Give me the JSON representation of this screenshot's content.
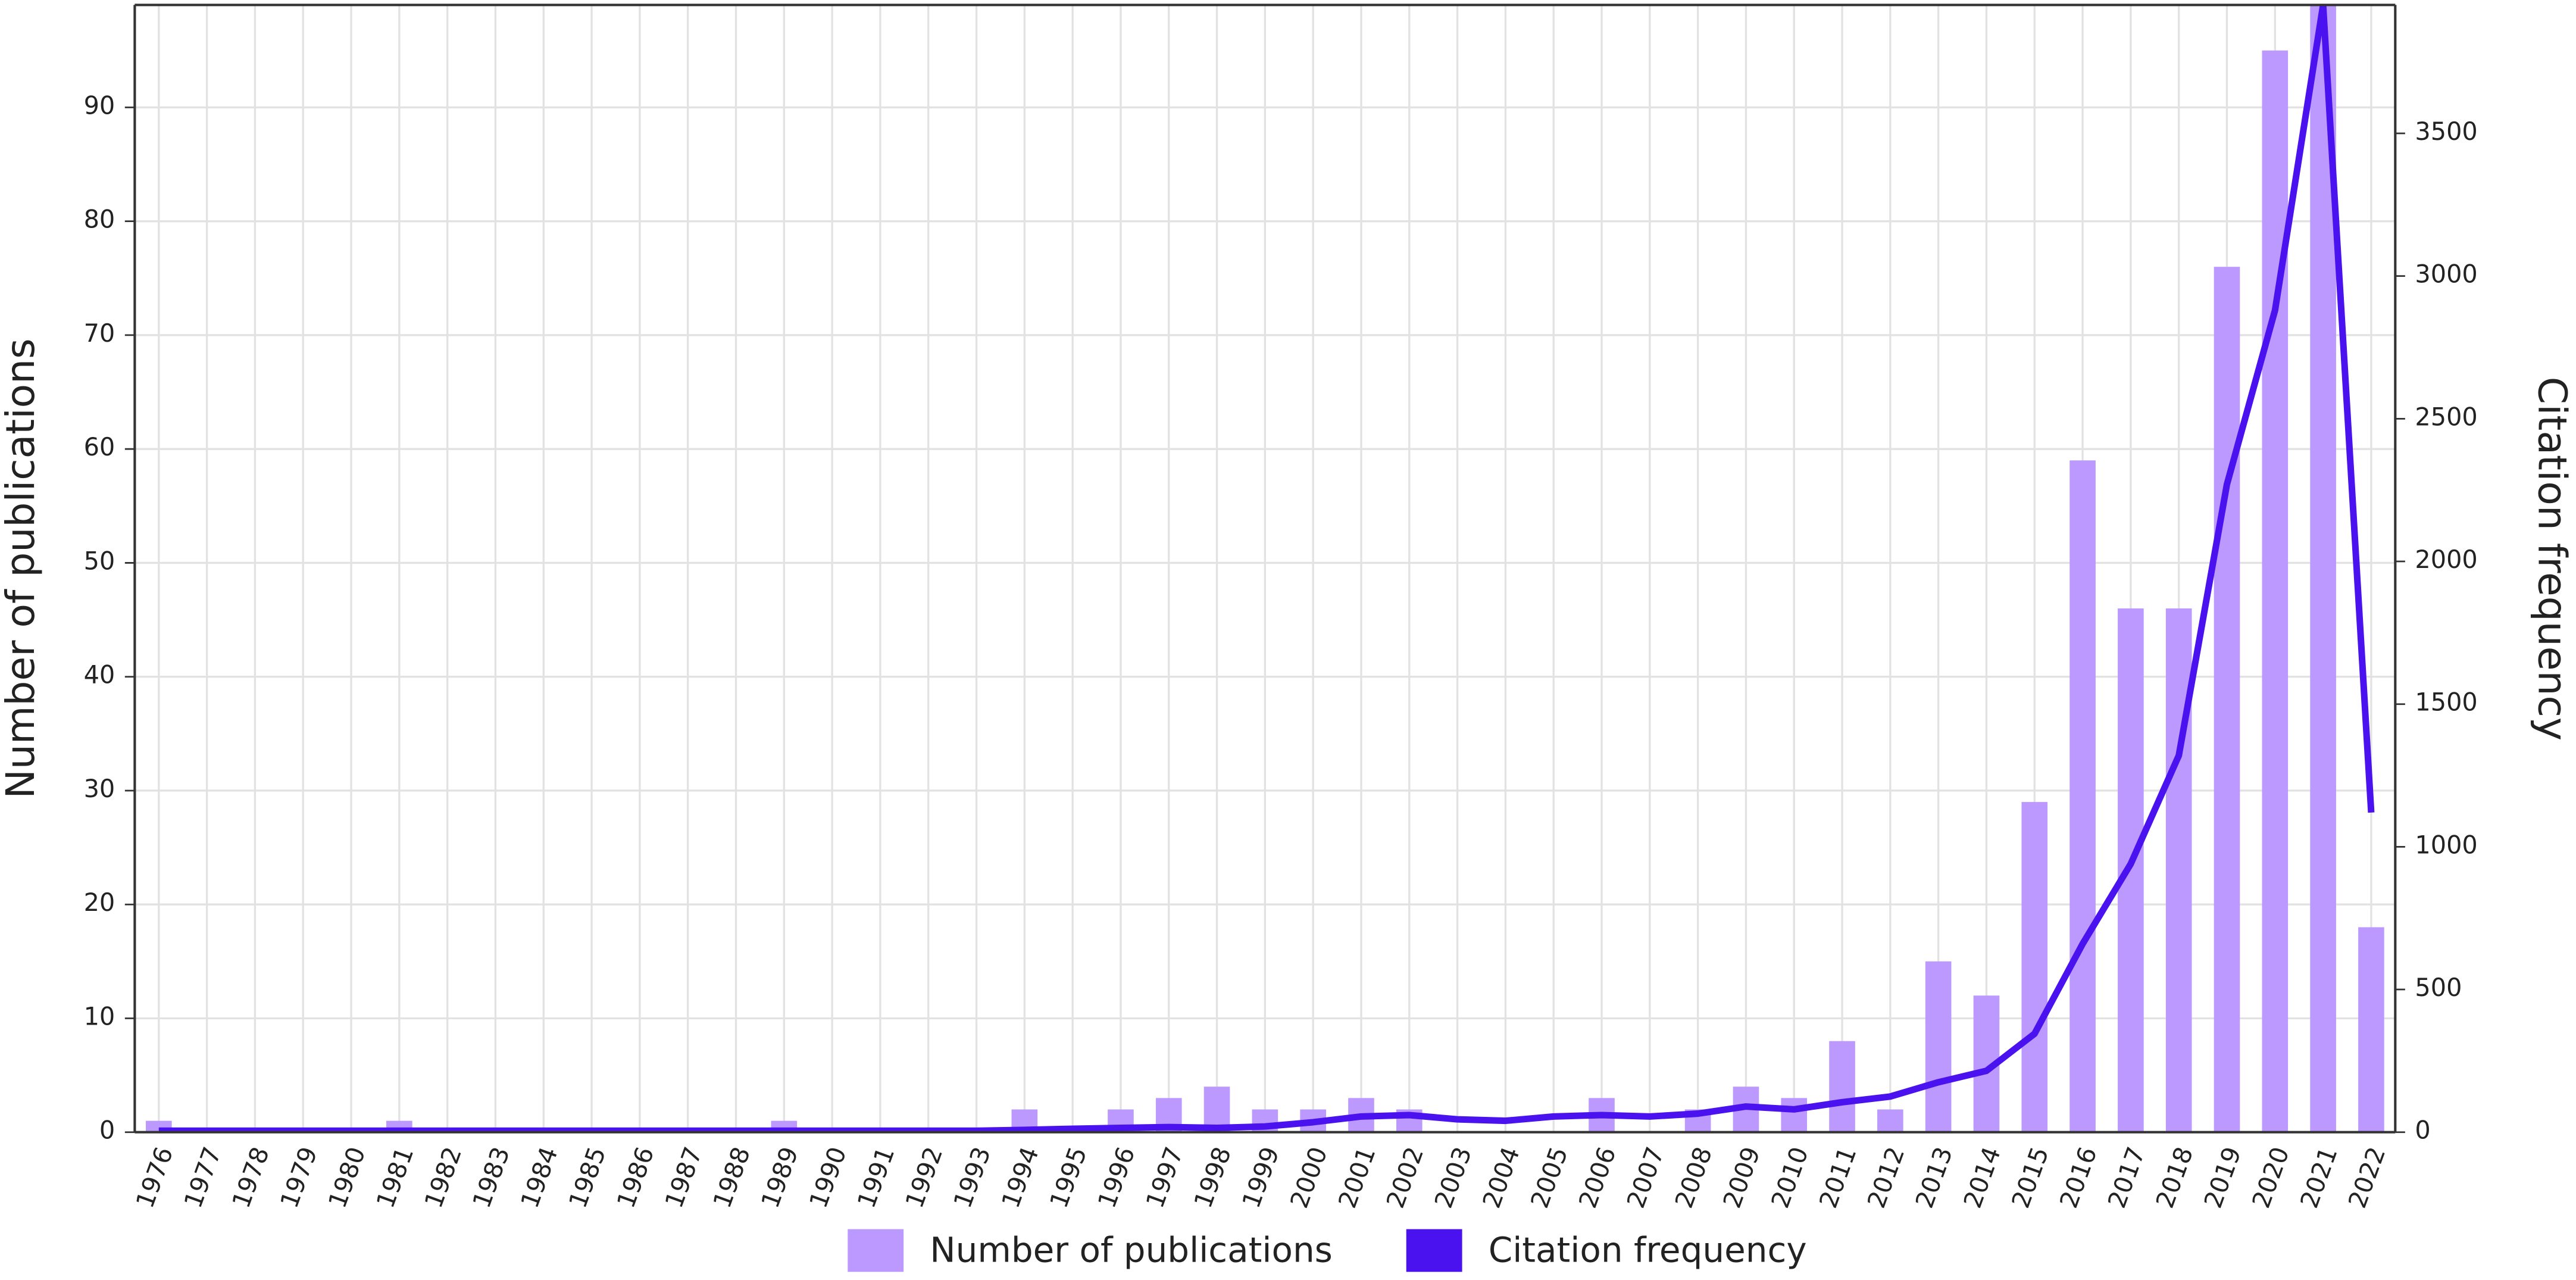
{
  "chart_data": {
    "type": "bar-line",
    "y_label": "Number of publications",
    "y2_label": "Citation frequency",
    "categories": [
      "1976",
      "1977",
      "1978",
      "1979",
      "1980",
      "1981",
      "1982",
      "1983",
      "1984",
      "1985",
      "1986",
      "1987",
      "1988",
      "1989",
      "1990",
      "1991",
      "1992",
      "1993",
      "1994",
      "1995",
      "1996",
      "1997",
      "1998",
      "1999",
      "2000",
      "2001",
      "2002",
      "2003",
      "2004",
      "2005",
      "2006",
      "2007",
      "2008",
      "2009",
      "2010",
      "2011",
      "2012",
      "2013",
      "2014",
      "2015",
      "2016",
      "2017",
      "2018",
      "2019",
      "2020",
      "2021",
      "2022"
    ],
    "series": [
      {
        "name": "Number of publications",
        "color": "#bb99ff",
        "kind": "bar",
        "values": [
          1,
          0,
          0,
          0,
          0,
          1,
          0,
          0,
          0,
          0,
          0,
          0,
          0,
          1,
          0,
          0,
          0,
          0,
          2,
          0,
          2,
          3,
          4,
          2,
          2,
          3,
          2,
          0,
          0,
          0,
          3,
          0,
          2,
          4,
          3,
          8,
          2,
          15,
          12,
          29,
          59,
          46,
          46,
          76,
          95,
          100,
          18
        ]
      },
      {
        "name": "Citation frequency",
        "color": "#4a12ee",
        "kind": "line",
        "axis": "y2",
        "values": [
          5,
          5,
          5,
          5,
          5,
          5,
          5,
          5,
          5,
          5,
          5,
          5,
          5,
          5,
          5,
          5,
          5,
          5,
          8,
          12,
          15,
          18,
          15,
          20,
          35,
          55,
          60,
          45,
          40,
          55,
          60,
          55,
          65,
          90,
          80,
          105,
          125,
          175,
          215,
          345,
          660,
          940,
          1320,
          2270,
          2880,
          3950,
          1120
        ]
      }
    ],
    "ylim": [
      0,
      99
    ],
    "yticks": [
      0,
      10,
      20,
      30,
      40,
      50,
      60,
      70,
      80,
      90
    ],
    "y2lim": [
      0,
      3950
    ],
    "y2ticks": [
      0,
      500,
      1000,
      1500,
      2000,
      2500,
      3000,
      3500
    ],
    "grid": true
  }
}
